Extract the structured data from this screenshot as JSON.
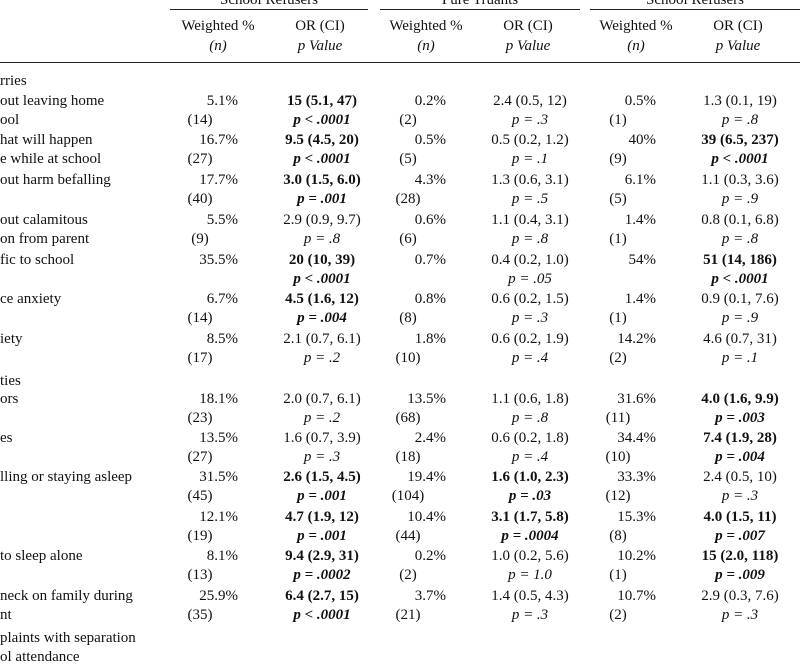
{
  "groups": [
    "School Refusers",
    "Pure Truants",
    "School Refusers"
  ],
  "subheaders": {
    "weighted": "Weighted %",
    "n": "(n)",
    "or": "OR (CI)",
    "p": "p Value"
  },
  "sections": {
    "worries": "rries",
    "difficulties": "ties"
  },
  "rows": [
    {
      "label1": "out leaving home",
      "label2": "ool",
      "c1": "5.1%",
      "c1n": "(14)",
      "c2": "15  (5.1, 47)",
      "c2p": "p < .0001",
      "c2b": true,
      "c3": "0.2%",
      "c3n": "(2)",
      "c4": "2.4  (0.5, 12)",
      "c4p": "p = .3",
      "c4b": false,
      "c5": "0.5%",
      "c5n": "(1)",
      "c6": "1.3  (0.1, 19)",
      "c6p": "p = .8",
      "c6b": false
    },
    {
      "label1": "hat will happen",
      "label2": "e while at school",
      "c1": "16.7%",
      "c1n": "(27)",
      "c2": "9.5  (4.5, 20)",
      "c2p": "p < .0001",
      "c2b": true,
      "c3": "0.5%",
      "c3n": "(5)",
      "c4": "0.5  (0.2, 1.2)",
      "c4p": "p = .1",
      "c4b": false,
      "c5": "40%",
      "c5n": "(9)",
      "c6": "39  (6.5, 237)",
      "c6p": "p < .0001",
      "c6b": true
    },
    {
      "label1": "out harm befalling",
      "label2": "",
      "c1": "17.7%",
      "c1n": "(40)",
      "c2": "3.0  (1.5, 6.0)",
      "c2p": "p = .001",
      "c2b": true,
      "c3": "4.3%",
      "c3n": "(28)",
      "c4": "1.3  (0.6, 3.1)",
      "c4p": "p = .5",
      "c4b": false,
      "c5": "6.1%",
      "c5n": "(5)",
      "c6": "1.1  (0.3, 3.6)",
      "c6p": "p = .9",
      "c6b": false
    },
    {
      "label1": "out calamitous",
      "label2": "on from parent",
      "c1": "5.5%",
      "c1n": "(9)",
      "c2": "2.9  (0.9, 9.7)",
      "c2p": "p = .8",
      "c2b": false,
      "c3": "0.6%",
      "c3n": "(6)",
      "c4": "1.1  (0.4, 3.1)",
      "c4p": "p = .8",
      "c4b": false,
      "c5": "1.4%",
      "c5n": "(1)",
      "c6": "0.8  (0.1, 6.8)",
      "c6p": "p = .8",
      "c6b": false
    },
    {
      "label1": "fic to school",
      "label2": "",
      "c1": "35.5%",
      "c1n": "",
      "c2": "20  (10, 39)",
      "c2p": "p < .0001",
      "c2b": true,
      "c3": "0.7%",
      "c3n": "",
      "c4": "0.4  (0.2, 1.0)",
      "c4p": "p = .05",
      "c4b": false,
      "c5": "54%",
      "c5n": "",
      "c6": "51  (14, 186)",
      "c6p": "p < .0001",
      "c6b": true
    },
    {
      "label1": "ce anxiety",
      "label2": "",
      "c1": "6.7%",
      "c1n": "(14)",
      "c2": "4.5  (1.6, 12)",
      "c2p": "p = .004",
      "c2b": true,
      "c3": "0.8%",
      "c3n": "(8)",
      "c4": "0.6  (0.2, 1.5)",
      "c4p": "p = .3",
      "c4b": false,
      "c5": "1.4%",
      "c5n": "(1)",
      "c6": "0.9  (0.1, 7.6)",
      "c6p": "p = .9",
      "c6b": false
    },
    {
      "label1": "iety",
      "label2": "",
      "c1": "8.5%",
      "c1n": "(17)",
      "c2": "2.1  (0.7, 6.1)",
      "c2p": "p = .2",
      "c2b": false,
      "c3": "1.8%",
      "c3n": "(10)",
      "c4": "0.6  (0.2, 1.9)",
      "c4p": "p = .4",
      "c4b": false,
      "c5": "14.2%",
      "c5n": "(2)",
      "c6": "4.6  (0.7, 31)",
      "c6p": "p = .1",
      "c6b": false
    },
    {
      "label1": "ors",
      "label2": "",
      "c1": "18.1%",
      "c1n": "(23)",
      "c2": "2.0  (0.7, 6.1)",
      "c2p": "p = .2",
      "c2b": false,
      "c3": "13.5%",
      "c3n": "(68)",
      "c4": "1.1  (0.6, 1.8)",
      "c4p": "p = .8",
      "c4b": false,
      "c5": "31.6%",
      "c5n": "(11)",
      "c6": "4.0  (1.6, 9.9)",
      "c6p": "p = .003",
      "c6b": true
    },
    {
      "label1": "es",
      "label2": "",
      "c1": "13.5%",
      "c1n": "(27)",
      "c2": "1.6  (0.7, 3.9)",
      "c2p": "p = .3",
      "c2b": false,
      "c3": "2.4%",
      "c3n": "(18)",
      "c4": "0.6  (0.2, 1.8)",
      "c4p": "p = .4",
      "c4b": false,
      "c5": "34.4%",
      "c5n": "(10)",
      "c6": "7.4  (1.9, 28)",
      "c6p": "p = .004",
      "c6b": true
    },
    {
      "label1": "lling or staying asleep",
      "label2": "",
      "c1": "31.5%",
      "c1n": "(45)",
      "c2": "2.6  (1.5, 4.5)",
      "c2p": "p = .001",
      "c2b": true,
      "c3": "19.4%",
      "c3n": "(104)",
      "c4": "1.6  (1.0, 2.3)",
      "c4p": "p = .03",
      "c4b": true,
      "c5": "33.3%",
      "c5n": "(12)",
      "c6": "2.4  (0.5, 10)",
      "c6p": "p = .3",
      "c6b": false
    },
    {
      "label1": "",
      "label2": "",
      "c1": "12.1%",
      "c1n": "(19)",
      "c2": "4.7  (1.9, 12)",
      "c2p": "p = .001",
      "c2b": true,
      "c3": "10.4%",
      "c3n": "(44)",
      "c4": "3.1  (1.7, 5.8)",
      "c4p": "p = .0004",
      "c4b": true,
      "c5": "15.3%",
      "c5n": "(8)",
      "c6": "4.0  (1.5, 11)",
      "c6p": "p = .007",
      "c6b": true
    },
    {
      "label1": "to sleep alone",
      "label2": "",
      "c1": "8.1%",
      "c1n": "(13)",
      "c2": "9.4  (2.9, 31)",
      "c2p": "p = .0002",
      "c2b": true,
      "c3": "0.2%",
      "c3n": "(2)",
      "c4": "1.0  (0.2, 5.6)",
      "c4p": "p = 1.0",
      "c4b": false,
      "c5": "10.2%",
      "c5n": "(1)",
      "c6": "15  (2.0, 118)",
      "c6p": "p = .009",
      "c6b": true
    },
    {
      "label1": "neck on family during",
      "label2": "nt",
      "c1": "25.9%",
      "c1n": "(35)",
      "c2": "6.4  (2.7, 15)",
      "c2p": "p < .0001",
      "c2b": true,
      "c3": "3.7%",
      "c3n": "(21)",
      "c4": "1.4  (0.5, 4.3)",
      "c4p": "p = .3",
      "c4b": false,
      "c5": "10.7%",
      "c5n": "(2)",
      "c6": "2.9  (0.3, 7.6)",
      "c6p": "p = .3",
      "c6b": false
    }
  ],
  "footer_lines": [
    "plaints with separation",
    "ol attendance"
  ]
}
